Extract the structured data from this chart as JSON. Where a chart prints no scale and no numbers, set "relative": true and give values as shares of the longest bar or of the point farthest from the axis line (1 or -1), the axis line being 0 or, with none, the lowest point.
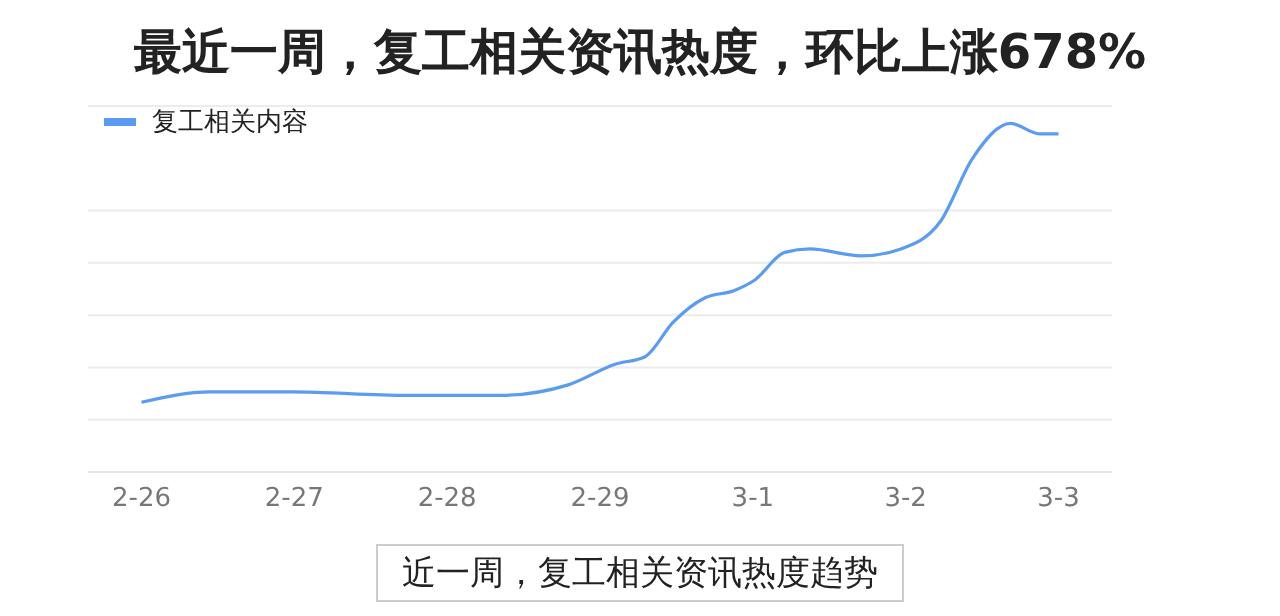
{
  "chart_data": {
    "type": "line",
    "title": "最近一周，复工相关资讯热度，环比上涨678%",
    "relative": true,
    "grid": "y",
    "legend": "top left",
    "line_style": "solid",
    "marker": "none",
    "xlim": [
      "--02-25T15:36",
      "--03-03T08:24"
    ],
    "xticks": [
      {
        "value": "--02-26",
        "label": "2-26"
      },
      {
        "value": "--02-27",
        "label": "2-27"
      },
      {
        "value": "--02-28",
        "label": "2-28"
      },
      {
        "value": "--02-29",
        "label": "2-29"
      },
      {
        "value": "--03-01",
        "label": "3-1"
      },
      {
        "value": "--03-02",
        "label": "3-2"
      },
      {
        "value": "--03-03",
        "label": "3-3"
      }
    ],
    "x": [
      "--02-26T00:00",
      "--02-26T10:48",
      "--02-26T23:30",
      "--02-27T17:30",
      "--02-28T08:30",
      "--02-28T19:00",
      "--02-29T02:30",
      "--02-29T07:00",
      "--02-29T11:30",
      "--02-29T16:30",
      "--02-29T21:00",
      "--03-01T00:15",
      "--03-01T05:00",
      "--03-01T09:00",
      "--03-01T17:00",
      "--03-01T23:15",
      "--03-02T05:30",
      "--03-02T10:30",
      "--03-02T16:30",
      "--03-02T21:00",
      "--03-03T00:00"
    ],
    "series": [
      {
        "name": "复工相关内容",
        "color": "#5b9cf0",
        "values": [
          0.2,
          0.23,
          0.23,
          0.22,
          0.22,
          0.25,
          0.31,
          0.33,
          0.43,
          0.5,
          0.52,
          0.55,
          0.63,
          0.64,
          0.62,
          0.64,
          0.72,
          0.9,
          1,
          0.97,
          0.97
        ]
      }
    ],
    "annotations": [
      "近一周，复工相关资讯热度趋势"
    ]
  }
}
